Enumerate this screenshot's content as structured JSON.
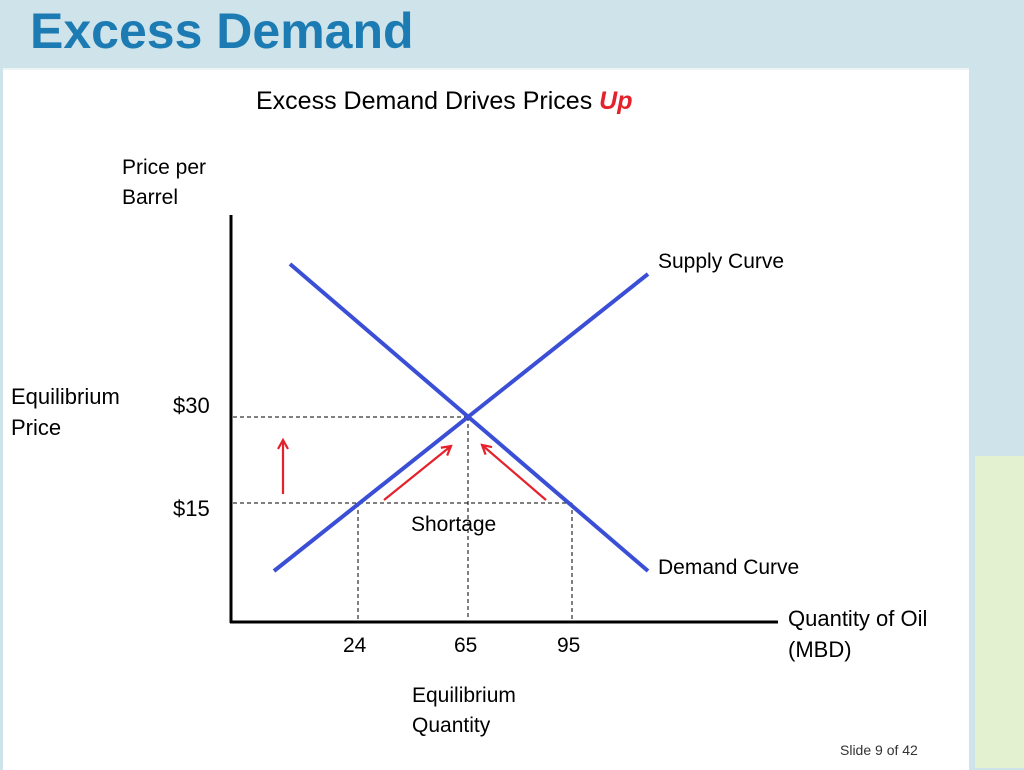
{
  "slide": {
    "title": "Excess Demand",
    "subtitle_main": "Excess Demand Drives Prices ",
    "subtitle_emphasis": "Up",
    "footer": "Slide 9 of 42"
  },
  "diagram": {
    "y_axis_label_line1": "Price per",
    "y_axis_label_line2": "Barrel",
    "x_axis_label_line1": "Quantity of Oil",
    "x_axis_label_line2": "(MBD)",
    "supply_label": "Supply Curve",
    "demand_label": "Demand Curve",
    "shortage_label": "Shortage",
    "eq_price_label_line1": "Equilibrium",
    "eq_price_label_line2": "Price",
    "eq_quantity_label_line1": "Equilibrium",
    "eq_quantity_label_line2": "Quantity",
    "price_ticks": [
      "$30",
      "$15"
    ],
    "quantity_ticks": [
      "24",
      "65",
      "95"
    ]
  },
  "colors": {
    "title": "#1c7bb2",
    "curves": "#3a4fd6",
    "arrows": "#e5212b",
    "emphasis": "#e5212b"
  }
}
